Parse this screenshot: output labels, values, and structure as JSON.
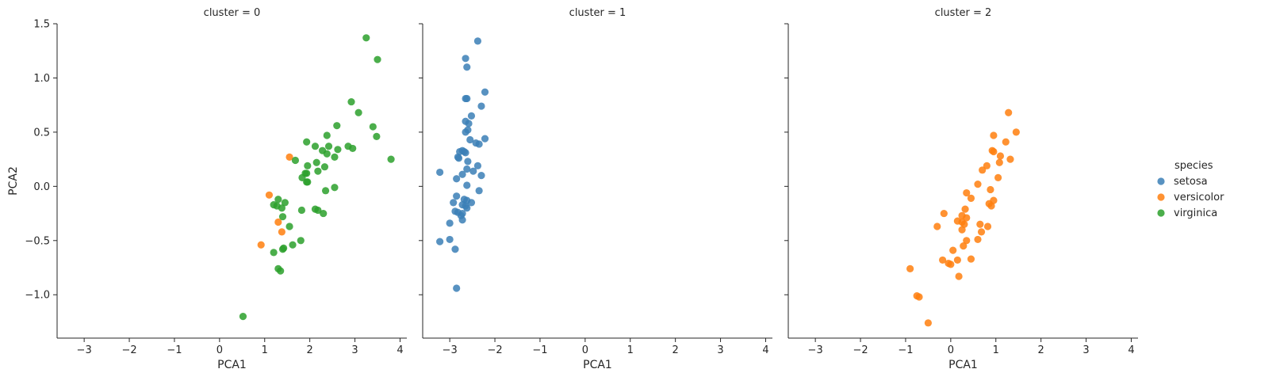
{
  "chart_data": {
    "type": "scatter",
    "layout": "facet-columns",
    "xlabel": "PCA1",
    "ylabel": "PCA2",
    "xlim": [
      -3.6,
      4.15
    ],
    "ylim": [
      -1.4,
      1.5
    ],
    "xticks": [
      -3,
      -2,
      -1,
      0,
      1,
      2,
      3,
      4
    ],
    "yticks": [
      -1.0,
      -0.5,
      0.0,
      0.5,
      1.0,
      1.5
    ],
    "xtick_labels": [
      "−3",
      "−2",
      "−1",
      "0",
      "1",
      "2",
      "3",
      "4"
    ],
    "ytick_labels": [
      "−1.0",
      "−0.5",
      "0.0",
      "0.5",
      "1.0",
      "1.5"
    ],
    "grid": false,
    "legend": {
      "title": "species",
      "placement": "right",
      "entries": [
        {
          "name": "setosa",
          "color": "#3b7fb6"
        },
        {
          "name": "versicolor",
          "color": "#ff7f0e"
        },
        {
          "name": "virginica",
          "color": "#2ca02c"
        }
      ]
    },
    "facets": [
      {
        "title": "cluster = 0",
        "series": [
          {
            "name": "versicolor",
            "points": [
              [
                1.1,
                -0.08
              ],
              [
                1.55,
                0.27
              ],
              [
                0.92,
                -0.54
              ],
              [
                1.3,
                -0.33
              ],
              [
                1.38,
                -0.42
              ]
            ]
          },
          {
            "name": "virginica",
            "points": [
              [
                3.25,
                1.37
              ],
              [
                3.5,
                1.17
              ],
              [
                2.92,
                0.78
              ],
              [
                3.08,
                0.68
              ],
              [
                3.4,
                0.55
              ],
              [
                3.48,
                0.46
              ],
              [
                3.8,
                0.25
              ],
              [
                2.6,
                0.56
              ],
              [
                2.38,
                0.47
              ],
              [
                1.93,
                0.41
              ],
              [
                2.85,
                0.37
              ],
              [
                2.95,
                0.35
              ],
              [
                2.42,
                0.37
              ],
              [
                2.12,
                0.37
              ],
              [
                2.62,
                0.34
              ],
              [
                2.28,
                0.33
              ],
              [
                2.38,
                0.3
              ],
              [
                2.55,
                0.27
              ],
              [
                1.68,
                0.24
              ],
              [
                2.15,
                0.22
              ],
              [
                1.95,
                0.19
              ],
              [
                2.33,
                0.18
              ],
              [
                2.18,
                0.14
              ],
              [
                1.9,
                0.12
              ],
              [
                1.93,
                0.12
              ],
              [
                1.83,
                0.08
              ],
              [
                1.93,
                0.04
              ],
              [
                1.95,
                0.04
              ],
              [
                2.55,
                -0.01
              ],
              [
                2.35,
                -0.04
              ],
              [
                1.3,
                -0.12
              ],
              [
                1.45,
                -0.15
              ],
              [
                1.2,
                -0.17
              ],
              [
                1.27,
                -0.18
              ],
              [
                1.38,
                -0.2
              ],
              [
                2.12,
                -0.21
              ],
              [
                2.18,
                -0.22
              ],
              [
                1.82,
                -0.22
              ],
              [
                2.3,
                -0.25
              ],
              [
                1.4,
                -0.28
              ],
              [
                1.55,
                -0.37
              ],
              [
                1.8,
                -0.5
              ],
              [
                1.62,
                -0.54
              ],
              [
                1.42,
                -0.57
              ],
              [
                1.4,
                -0.58
              ],
              [
                1.2,
                -0.61
              ],
              [
                1.3,
                -0.76
              ],
              [
                1.35,
                -0.78
              ],
              [
                0.52,
                -1.2
              ]
            ]
          }
        ]
      },
      {
        "title": "cluster = 1",
        "series": [
          {
            "name": "setosa",
            "points": [
              [
                -2.38,
                1.34
              ],
              [
                -2.65,
                1.18
              ],
              [
                -2.62,
                1.1
              ],
              [
                -2.22,
                0.87
              ],
              [
                -2.62,
                0.81
              ],
              [
                -2.65,
                0.81
              ],
              [
                -2.3,
                0.74
              ],
              [
                -2.52,
                0.65
              ],
              [
                -2.65,
                0.6
              ],
              [
                -2.58,
                0.58
              ],
              [
                -2.6,
                0.52
              ],
              [
                -2.65,
                0.5
              ],
              [
                -2.22,
                0.44
              ],
              [
                -2.55,
                0.43
              ],
              [
                -2.42,
                0.4
              ],
              [
                -2.35,
                0.39
              ],
              [
                -2.72,
                0.33
              ],
              [
                -2.78,
                0.32
              ],
              [
                -2.68,
                0.32
              ],
              [
                -2.65,
                0.31
              ],
              [
                -2.82,
                0.27
              ],
              [
                -2.8,
                0.26
              ],
              [
                -2.6,
                0.23
              ],
              [
                -2.38,
                0.19
              ],
              [
                -2.62,
                0.16
              ],
              [
                -2.48,
                0.14
              ],
              [
                -3.22,
                0.13
              ],
              [
                -2.72,
                0.11
              ],
              [
                -2.3,
                0.1
              ],
              [
                -2.85,
                0.07
              ],
              [
                -2.62,
                0.01
              ],
              [
                -2.35,
                -0.04
              ],
              [
                -2.85,
                -0.09
              ],
              [
                -2.68,
                -0.12
              ],
              [
                -2.62,
                -0.13
              ],
              [
                -2.92,
                -0.15
              ],
              [
                -2.52,
                -0.15
              ],
              [
                -2.72,
                -0.17
              ],
              [
                -2.65,
                -0.18
              ],
              [
                -2.62,
                -0.2
              ],
              [
                -2.88,
                -0.23
              ],
              [
                -2.82,
                -0.24
              ],
              [
                -2.72,
                -0.25
              ],
              [
                -2.75,
                -0.27
              ],
              [
                -2.72,
                -0.31
              ],
              [
                -3.0,
                -0.34
              ],
              [
                -3.22,
                -0.51
              ],
              [
                -3.0,
                -0.49
              ],
              [
                -2.88,
                -0.58
              ],
              [
                -2.85,
                -0.94
              ]
            ]
          }
        ]
      },
      {
        "title": "cluster = 2",
        "series": [
          {
            "name": "versicolor",
            "points": [
              [
                1.28,
                0.68
              ],
              [
                1.45,
                0.5
              ],
              [
                0.95,
                0.47
              ],
              [
                1.22,
                0.41
              ],
              [
                0.92,
                0.33
              ],
              [
                0.95,
                0.32
              ],
              [
                1.1,
                0.28
              ],
              [
                1.32,
                0.25
              ],
              [
                1.08,
                0.22
              ],
              [
                0.8,
                0.19
              ],
              [
                0.7,
                0.15
              ],
              [
                1.05,
                0.08
              ],
              [
                0.6,
                0.02
              ],
              [
                0.88,
                -0.03
              ],
              [
                0.35,
                -0.06
              ],
              [
                0.45,
                -0.11
              ],
              [
                0.95,
                -0.13
              ],
              [
                0.85,
                -0.16
              ],
              [
                0.9,
                -0.18
              ],
              [
                0.32,
                -0.21
              ],
              [
                -0.15,
                -0.25
              ],
              [
                0.25,
                -0.27
              ],
              [
                0.35,
                -0.29
              ],
              [
                0.15,
                -0.32
              ],
              [
                0.25,
                -0.33
              ],
              [
                0.3,
                -0.35
              ],
              [
                0.65,
                -0.35
              ],
              [
                -0.3,
                -0.37
              ],
              [
                0.82,
                -0.37
              ],
              [
                0.25,
                -0.4
              ],
              [
                0.68,
                -0.42
              ],
              [
                0.6,
                -0.49
              ],
              [
                0.35,
                -0.5
              ],
              [
                0.28,
                -0.55
              ],
              [
                0.05,
                -0.59
              ],
              [
                -0.18,
                -0.68
              ],
              [
                0.45,
                -0.67
              ],
              [
                0.15,
                -0.68
              ],
              [
                -0.05,
                -0.71
              ],
              [
                0.0,
                -0.72
              ],
              [
                0.18,
                -0.83
              ],
              [
                -0.9,
                -0.76
              ],
              [
                -0.75,
                -1.01
              ],
              [
                -0.7,
                -1.02
              ],
              [
                -0.5,
                -1.26
              ]
            ]
          }
        ]
      }
    ]
  }
}
